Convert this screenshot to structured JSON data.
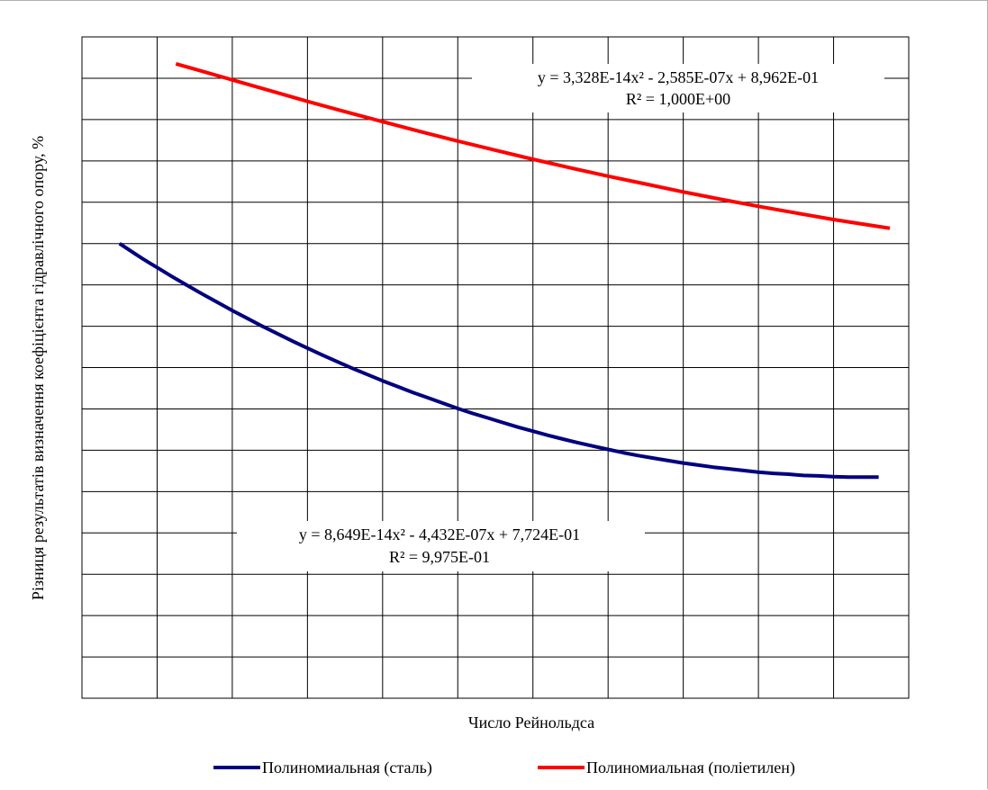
{
  "chart_data": {
    "type": "line",
    "title": "",
    "xlabel": "Число Рейнольдса",
    "ylabel": "Різниця результатів визначення коефіцієнта гідравлічного опору, %",
    "grid": true,
    "legend_position": "bottom",
    "x_tick_labels": [],
    "y_tick_labels": [],
    "series": [
      {
        "name": "Полиномиальная (сталь)",
        "color": "#00007f",
        "x": [
          0.5,
          0.6,
          0.7,
          0.8,
          0.9,
          1.0,
          1.2,
          1.4,
          1.6,
          1.8,
          2.0,
          2.2,
          2.4,
          2.6,
          2.8,
          3.0,
          3.2,
          3.4,
          3.6,
          3.8,
          4.0,
          4.2,
          4.4,
          4.6,
          4.8,
          5.0,
          5.2,
          5.4,
          5.6,
          5.8,
          6.0,
          6.2,
          6.4,
          6.6,
          6.8,
          7.0,
          7.2,
          7.4,
          7.6,
          7.8,
          8.0,
          8.2,
          8.4,
          8.6,
          8.8,
          9.0,
          9.2,
          9.4,
          9.6,
          9.8,
          10.0,
          10.2,
          10.4,
          10.6
        ],
        "y": [
          11.0,
          10.88,
          10.76,
          10.64,
          10.53,
          10.42,
          10.2,
          9.99,
          9.78,
          9.58,
          9.38,
          9.19,
          9.0,
          8.82,
          8.64,
          8.47,
          8.3,
          8.14,
          7.98,
          7.83,
          7.68,
          7.54,
          7.4,
          7.27,
          7.14,
          7.01,
          6.89,
          6.78,
          6.67,
          6.56,
          6.46,
          6.36,
          6.27,
          6.18,
          6.1,
          6.02,
          5.94,
          5.87,
          5.81,
          5.75,
          5.69,
          5.64,
          5.59,
          5.55,
          5.51,
          5.47,
          5.44,
          5.42,
          5.39,
          5.38,
          5.36,
          5.35,
          5.35,
          5.35
        ],
        "trendline_equation": "y = 8,649E-14x² - 4,432E-07x + 7,724E-01",
        "r_squared": "R² = 9,975E-01"
      },
      {
        "name": "Полиномиальная (поліетилен)",
        "color": "#ff0000",
        "x": [
          1.25,
          1.5,
          2.0,
          2.5,
          3.0,
          3.5,
          4.0,
          4.5,
          5.0,
          5.5,
          6.0,
          6.5,
          7.0,
          7.5,
          8.0,
          8.5,
          9.0,
          9.5,
          10.0,
          10.5,
          10.75
        ],
        "y": [
          15.35,
          15.22,
          14.96,
          14.7,
          14.44,
          14.19,
          13.95,
          13.71,
          13.48,
          13.26,
          13.04,
          12.83,
          12.63,
          12.44,
          12.25,
          12.07,
          11.9,
          11.74,
          11.58,
          11.44,
          11.37
        ],
        "trendline_equation": "y = 3,328E-14x² - 2,585E-07x + 8,962E-01",
        "r_squared": "R² = 1,000E+00"
      }
    ],
    "xlim": [
      0,
      11
    ],
    "ylim": [
      0,
      16
    ],
    "gridlines": {
      "x_count": 11,
      "y_count": 16
    }
  }
}
